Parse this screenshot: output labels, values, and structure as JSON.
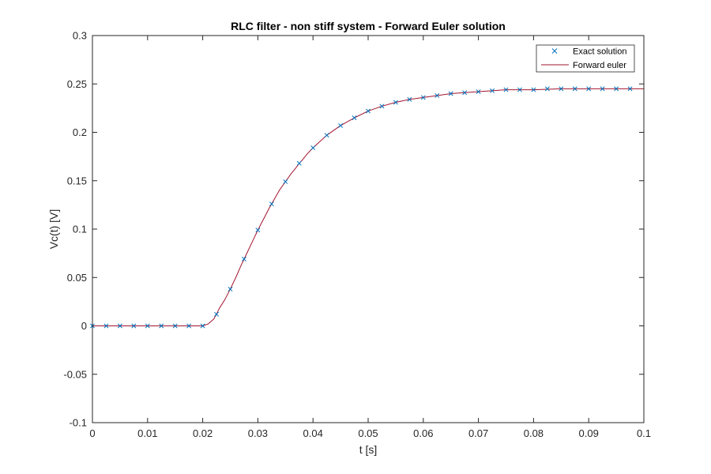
{
  "chart_data": {
    "type": "line",
    "title": "RLC filter - non stiff system - Forward Euler solution",
    "xlabel": "t [s]",
    "ylabel": "Vc(t) [V]",
    "xlim": [
      0,
      0.1
    ],
    "ylim": [
      -0.1,
      0.3
    ],
    "x_ticks": [
      0,
      0.01,
      0.02,
      0.03,
      0.04,
      0.05,
      0.06,
      0.07,
      0.08,
      0.09,
      0.1
    ],
    "x_tick_labels": [
      "0",
      "0.01",
      "0.02",
      "0.03",
      "0.04",
      "0.05",
      "0.06",
      "0.07",
      "0.08",
      "0.09",
      "0.1"
    ],
    "y_ticks": [
      -0.1,
      -0.05,
      0,
      0.05,
      0.1,
      0.15,
      0.2,
      0.25,
      0.3
    ],
    "y_tick_labels": [
      "-0.1",
      "-0.05",
      "0",
      "0.05",
      "0.1",
      "0.15",
      "0.2",
      "0.25",
      "0.3"
    ],
    "grid": false,
    "legend_position": "top-right",
    "series": [
      {
        "name": "Exact solution",
        "style": "markers",
        "marker": "x",
        "color": "#0072BD",
        "x": [
          0,
          0.0025,
          0.005,
          0.0075,
          0.01,
          0.0125,
          0.015,
          0.0175,
          0.02,
          0.0225,
          0.025,
          0.0275,
          0.03,
          0.0325,
          0.035,
          0.0375,
          0.04,
          0.0425,
          0.045,
          0.0475,
          0.05,
          0.0525,
          0.055,
          0.0575,
          0.06,
          0.0625,
          0.065,
          0.0675,
          0.07,
          0.0725,
          0.075,
          0.0775,
          0.08,
          0.0825,
          0.085,
          0.0875,
          0.09,
          0.0925,
          0.095,
          0.0975
        ],
        "y": [
          0,
          0,
          0,
          0,
          0,
          0,
          0,
          0,
          0,
          0.012,
          0.038,
          0.069,
          0.099,
          0.126,
          0.149,
          0.168,
          0.184,
          0.197,
          0.207,
          0.215,
          0.222,
          0.227,
          0.231,
          0.234,
          0.236,
          0.238,
          0.24,
          0.241,
          0.242,
          0.243,
          0.244,
          0.244,
          0.244,
          0.245,
          0.245,
          0.245,
          0.245,
          0.245,
          0.245,
          0.245
        ]
      },
      {
        "name": "Forward euler",
        "style": "line",
        "color": "#A2142F",
        "x": [
          0,
          0.005,
          0.01,
          0.015,
          0.02,
          0.021,
          0.022,
          0.0225,
          0.023,
          0.024,
          0.025,
          0.026,
          0.027,
          0.0275,
          0.028,
          0.029,
          0.03,
          0.031,
          0.032,
          0.0325,
          0.033,
          0.034,
          0.035,
          0.036,
          0.037,
          0.0375,
          0.038,
          0.039,
          0.04,
          0.0425,
          0.045,
          0.0475,
          0.05,
          0.0525,
          0.055,
          0.0575,
          0.06,
          0.0625,
          0.065,
          0.0675,
          0.07,
          0.0725,
          0.075,
          0.08,
          0.085,
          0.09,
          0.095,
          0.1
        ],
        "y": [
          0,
          0,
          0,
          0,
          0,
          0.002,
          0.007,
          0.012,
          0.018,
          0.027,
          0.038,
          0.05,
          0.063,
          0.069,
          0.075,
          0.087,
          0.099,
          0.11,
          0.121,
          0.126,
          0.131,
          0.141,
          0.149,
          0.157,
          0.164,
          0.168,
          0.171,
          0.178,
          0.184,
          0.197,
          0.207,
          0.215,
          0.222,
          0.227,
          0.231,
          0.234,
          0.236,
          0.238,
          0.24,
          0.241,
          0.242,
          0.243,
          0.244,
          0.244,
          0.245,
          0.245,
          0.245,
          0.245
        ]
      }
    ]
  }
}
